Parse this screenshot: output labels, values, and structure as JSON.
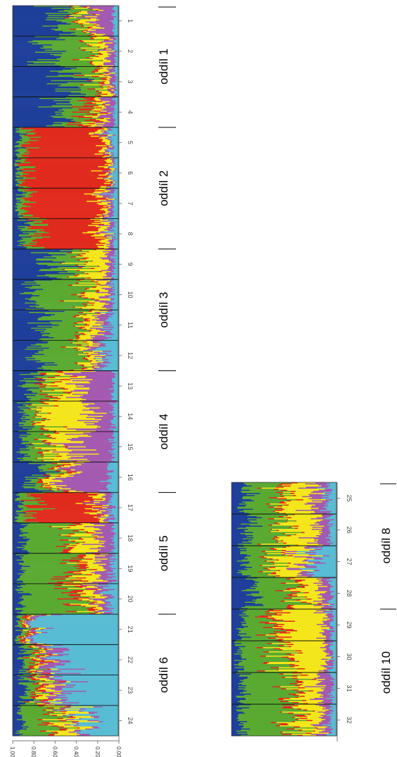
{
  "chart_data": [
    {
      "type": "bar",
      "chart": "structure-main",
      "orientation": "rotated 90 degrees (populations run top to bottom)",
      "y_ticks": [
        "1.00",
        "0.80",
        "0.60",
        "0.40",
        "0.20",
        "0.00"
      ],
      "ylim": [
        0,
        1
      ],
      "colors": {
        "blue": "#1f3f9a",
        "green": "#5aaa32",
        "red": "#e12b1e",
        "yellow": "#f3e61a",
        "purple": "#a45ab0",
        "cyan": "#58bcd4"
      },
      "series_order": [
        "blue",
        "green",
        "red",
        "yellow",
        "purple",
        "cyan"
      ],
      "populations": [
        {
          "label": "1",
          "props": [
            0.45,
            0.2,
            0.03,
            0.08,
            0.2,
            0.04
          ]
        },
        {
          "label": "2",
          "props": [
            0.35,
            0.4,
            0.03,
            0.12,
            0.07,
            0.03
          ]
        },
        {
          "label": "3",
          "props": [
            0.55,
            0.25,
            0.04,
            0.08,
            0.05,
            0.03
          ]
        },
        {
          "label": "4",
          "props": [
            0.4,
            0.28,
            0.1,
            0.08,
            0.1,
            0.04
          ]
        },
        {
          "label": "5",
          "props": [
            0.05,
            0.08,
            0.72,
            0.05,
            0.03,
            0.07
          ]
        },
        {
          "label": "6",
          "props": [
            0.04,
            0.06,
            0.8,
            0.04,
            0.02,
            0.04
          ]
        },
        {
          "label": "7",
          "props": [
            0.05,
            0.08,
            0.7,
            0.06,
            0.05,
            0.06
          ]
        },
        {
          "label": "8",
          "props": [
            0.1,
            0.12,
            0.6,
            0.08,
            0.05,
            0.05
          ]
        },
        {
          "label": "9",
          "props": [
            0.4,
            0.25,
            0.03,
            0.2,
            0.07,
            0.05
          ]
        },
        {
          "label": "10",
          "props": [
            0.2,
            0.5,
            0.03,
            0.15,
            0.07,
            0.05
          ]
        },
        {
          "label": "11",
          "props": [
            0.3,
            0.35,
            0.03,
            0.12,
            0.1,
            0.1
          ]
        },
        {
          "label": "12",
          "props": [
            0.25,
            0.4,
            0.03,
            0.1,
            0.07,
            0.15
          ]
        },
        {
          "label": "13",
          "props": [
            0.15,
            0.2,
            0.05,
            0.2,
            0.35,
            0.05
          ]
        },
        {
          "label": "14",
          "props": [
            0.1,
            0.15,
            0.03,
            0.45,
            0.22,
            0.05
          ]
        },
        {
          "label": "15",
          "props": [
            0.1,
            0.2,
            0.03,
            0.25,
            0.37,
            0.05
          ]
        },
        {
          "label": "16",
          "props": [
            0.2,
            0.12,
            0.05,
            0.1,
            0.45,
            0.08
          ]
        },
        {
          "label": "17",
          "props": [
            0.05,
            0.15,
            0.55,
            0.08,
            0.1,
            0.07
          ]
        },
        {
          "label": "18",
          "props": [
            0.1,
            0.45,
            0.05,
            0.2,
            0.15,
            0.05
          ]
        },
        {
          "label": "19",
          "props": [
            0.08,
            0.5,
            0.1,
            0.15,
            0.12,
            0.05
          ]
        },
        {
          "label": "20",
          "props": [
            0.08,
            0.55,
            0.08,
            0.1,
            0.09,
            0.1
          ]
        },
        {
          "label": "21",
          "props": [
            0.05,
            0.05,
            0.03,
            0.03,
            0.04,
            0.8
          ]
        },
        {
          "label": "22",
          "props": [
            0.1,
            0.1,
            0.05,
            0.05,
            0.15,
            0.55
          ]
        },
        {
          "label": "23",
          "props": [
            0.1,
            0.1,
            0.05,
            0.08,
            0.12,
            0.55
          ]
        },
        {
          "label": "24",
          "props": [
            0.08,
            0.3,
            0.05,
            0.15,
            0.07,
            0.35
          ]
        }
      ]
    },
    {
      "type": "bar",
      "chart": "structure-secondary",
      "orientation": "rotated 90 degrees (populations run top to bottom)",
      "ylim": [
        0,
        1
      ],
      "colors": {
        "blue": "#1f3f9a",
        "green": "#5aaa32",
        "red": "#e12b1e",
        "yellow": "#f3e61a",
        "purple": "#a45ab0",
        "cyan": "#58bcd4"
      },
      "series_order": [
        "blue",
        "green",
        "red",
        "yellow",
        "purple",
        "cyan"
      ],
      "populations": [
        {
          "label": "25",
          "props": [
            0.15,
            0.3,
            0.05,
            0.25,
            0.15,
            0.1
          ]
        },
        {
          "label": "26",
          "props": [
            0.15,
            0.35,
            0.03,
            0.3,
            0.12,
            0.05
          ]
        },
        {
          "label": "27",
          "props": [
            0.12,
            0.3,
            0.03,
            0.25,
            0.1,
            0.2
          ]
        },
        {
          "label": "28",
          "props": [
            0.2,
            0.4,
            0.05,
            0.2,
            0.1,
            0.05
          ]
        },
        {
          "label": "29",
          "props": [
            0.1,
            0.3,
            0.08,
            0.4,
            0.07,
            0.05
          ]
        },
        {
          "label": "30",
          "props": [
            0.08,
            0.4,
            0.05,
            0.35,
            0.07,
            0.05
          ]
        },
        {
          "label": "31",
          "props": [
            0.1,
            0.5,
            0.05,
            0.2,
            0.1,
            0.05
          ]
        },
        {
          "label": "32",
          "props": [
            0.08,
            0.55,
            0.05,
            0.2,
            0.07,
            0.05
          ]
        }
      ]
    }
  ],
  "sections_main": [
    {
      "name": "oddíl 1",
      "from": 1,
      "to": 4
    },
    {
      "name": "oddíl 2",
      "from": 5,
      "to": 8
    },
    {
      "name": "oddíl 3",
      "from": 9,
      "to": 12
    },
    {
      "name": "oddíl 4",
      "from": 13,
      "to": 16
    },
    {
      "name": "oddíl 5",
      "from": 17,
      "to": 20
    },
    {
      "name": "oddíl 6",
      "from": 21,
      "to": 24
    }
  ],
  "sections_secondary": [
    {
      "name": "oddíl 8",
      "from": 25,
      "to": 28
    },
    {
      "name": "oddíl 10",
      "from": 29,
      "to": 32
    }
  ]
}
